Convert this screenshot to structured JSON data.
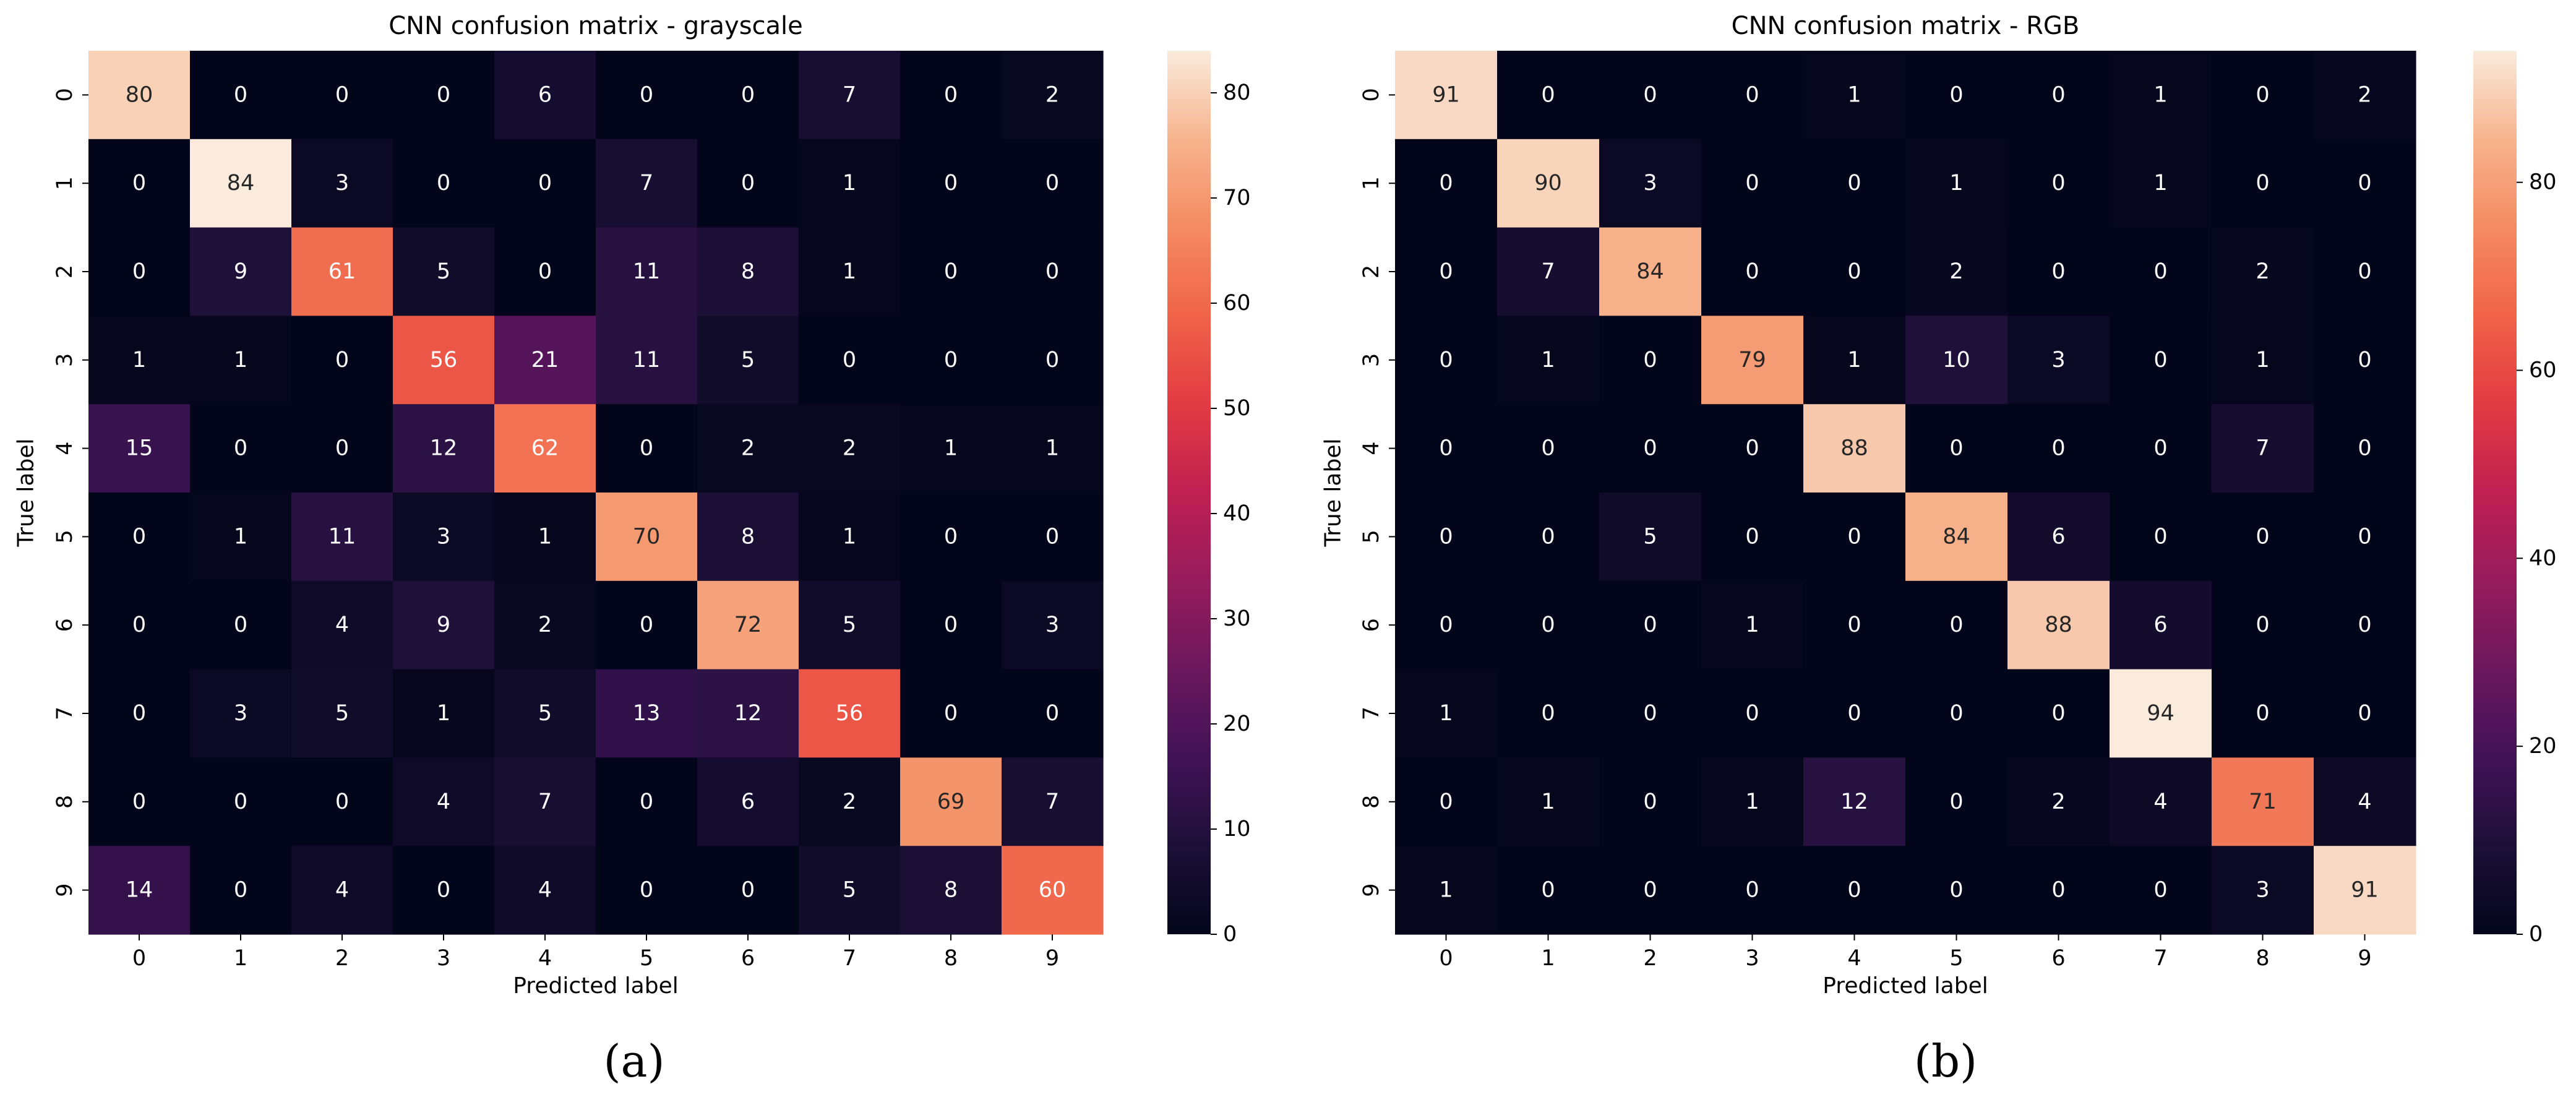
{
  "chart_data": [
    {
      "type": "heatmap",
      "title": "CNN confusion matrix - grayscale",
      "xlabel": "Predicted label",
      "ylabel": "True label",
      "x_tick_labels": [
        "0",
        "1",
        "2",
        "3",
        "4",
        "5",
        "6",
        "7",
        "8",
        "9"
      ],
      "y_tick_labels": [
        "0",
        "1",
        "2",
        "3",
        "4",
        "5",
        "6",
        "7",
        "8",
        "9"
      ],
      "matrix": [
        [
          80,
          0,
          0,
          0,
          6,
          0,
          0,
          7,
          0,
          2
        ],
        [
          0,
          84,
          3,
          0,
          0,
          7,
          0,
          1,
          0,
          0
        ],
        [
          0,
          9,
          61,
          5,
          0,
          11,
          8,
          1,
          0,
          0
        ],
        [
          1,
          1,
          0,
          56,
          21,
          11,
          5,
          0,
          0,
          0
        ],
        [
          15,
          0,
          0,
          12,
          62,
          0,
          2,
          2,
          1,
          1
        ],
        [
          0,
          1,
          11,
          3,
          1,
          70,
          8,
          1,
          0,
          0
        ],
        [
          0,
          0,
          4,
          9,
          2,
          0,
          72,
          5,
          0,
          3
        ],
        [
          0,
          3,
          5,
          1,
          5,
          13,
          12,
          56,
          0,
          0
        ],
        [
          0,
          0,
          0,
          4,
          7,
          0,
          6,
          2,
          69,
          7
        ],
        [
          14,
          0,
          4,
          0,
          4,
          0,
          0,
          5,
          8,
          60
        ]
      ],
      "colorbar": {
        "min": 0,
        "max": 84,
        "ticks": [
          "0",
          "10",
          "20",
          "30",
          "40",
          "50",
          "60",
          "70",
          "80"
        ]
      },
      "colormap": "rocket",
      "panel_label": "(a)"
    },
    {
      "type": "heatmap",
      "title": "CNN confusion matrix - RGB",
      "xlabel": "Predicted label",
      "ylabel": "True label",
      "x_tick_labels": [
        "0",
        "1",
        "2",
        "3",
        "4",
        "5",
        "6",
        "7",
        "8",
        "9"
      ],
      "y_tick_labels": [
        "0",
        "1",
        "2",
        "3",
        "4",
        "5",
        "6",
        "7",
        "8",
        "9"
      ],
      "matrix": [
        [
          91,
          0,
          0,
          0,
          1,
          0,
          0,
          1,
          0,
          2
        ],
        [
          0,
          90,
          3,
          0,
          0,
          1,
          0,
          1,
          0,
          0
        ],
        [
          0,
          7,
          84,
          0,
          0,
          2,
          0,
          0,
          2,
          0
        ],
        [
          0,
          1,
          0,
          79,
          1,
          10,
          3,
          0,
          1,
          0
        ],
        [
          0,
          0,
          0,
          0,
          88,
          0,
          0,
          0,
          7,
          0
        ],
        [
          0,
          0,
          5,
          0,
          0,
          84,
          6,
          0,
          0,
          0
        ],
        [
          0,
          0,
          0,
          1,
          0,
          0,
          88,
          6,
          0,
          0
        ],
        [
          1,
          0,
          0,
          0,
          0,
          0,
          0,
          94,
          0,
          0
        ],
        [
          0,
          1,
          0,
          1,
          12,
          0,
          2,
          4,
          71,
          4
        ],
        [
          1,
          0,
          0,
          0,
          0,
          0,
          0,
          0,
          3,
          91
        ]
      ],
      "colorbar": {
        "min": 0,
        "max": 94,
        "ticks": [
          "0",
          "20",
          "40",
          "60",
          "80"
        ]
      },
      "colormap": "rocket",
      "panel_label": "(b)"
    }
  ]
}
